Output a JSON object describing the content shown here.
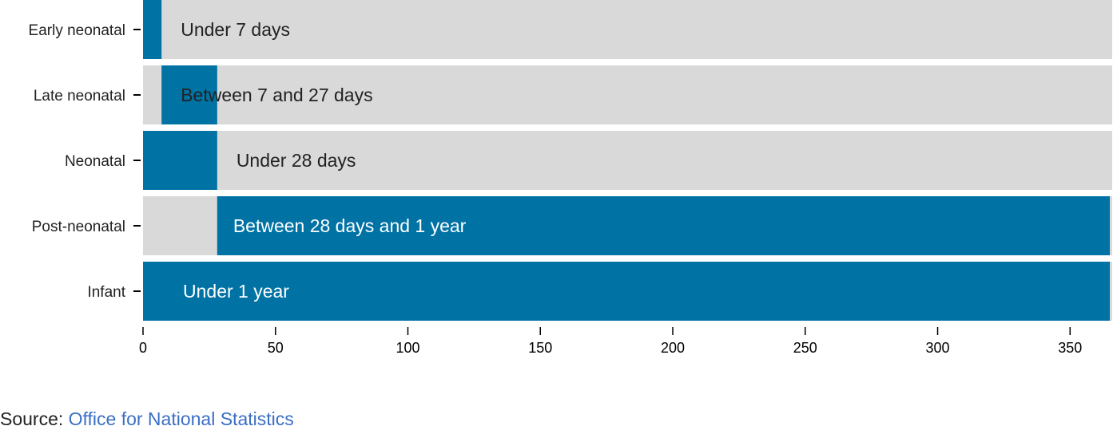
{
  "chart_data": {
    "type": "bar",
    "orientation": "horizontal",
    "stacked": true,
    "categories": [
      "Early neonatal",
      "Late neonatal",
      "Neonatal",
      "Post-neonatal",
      "Infant"
    ],
    "bars": [
      {
        "category": "Early neonatal",
        "label": "Under 7 days",
        "highlight_start": 0,
        "highlight_end": 7
      },
      {
        "category": "Late neonatal",
        "label": "Between 7 and 27 days",
        "highlight_start": 7,
        "highlight_end": 28
      },
      {
        "category": "Neonatal",
        "label": "Under 28 days",
        "highlight_start": 0,
        "highlight_end": 28
      },
      {
        "category": "Post-neonatal",
        "label": "Between 28 days and 1 year",
        "highlight_start": 28,
        "highlight_end": 365
      },
      {
        "category": "Infant",
        "label": "Under 1 year",
        "highlight_start": 0,
        "highlight_end": 365
      }
    ],
    "xlim": [
      0,
      365
    ],
    "xticks": [
      0,
      50,
      100,
      150,
      200,
      250,
      300,
      350
    ],
    "xlabel": "",
    "ylabel": "",
    "title": "",
    "grid": false,
    "colors": {
      "highlight": "#0072a4",
      "background": "#d9d9d9",
      "label_on_light": "#222222",
      "label_on_dark": "#ffffff"
    }
  },
  "source": {
    "prefix": "Source: ",
    "link_text": "Office for National Statistics",
    "link_color": "#3b6fc4"
  }
}
